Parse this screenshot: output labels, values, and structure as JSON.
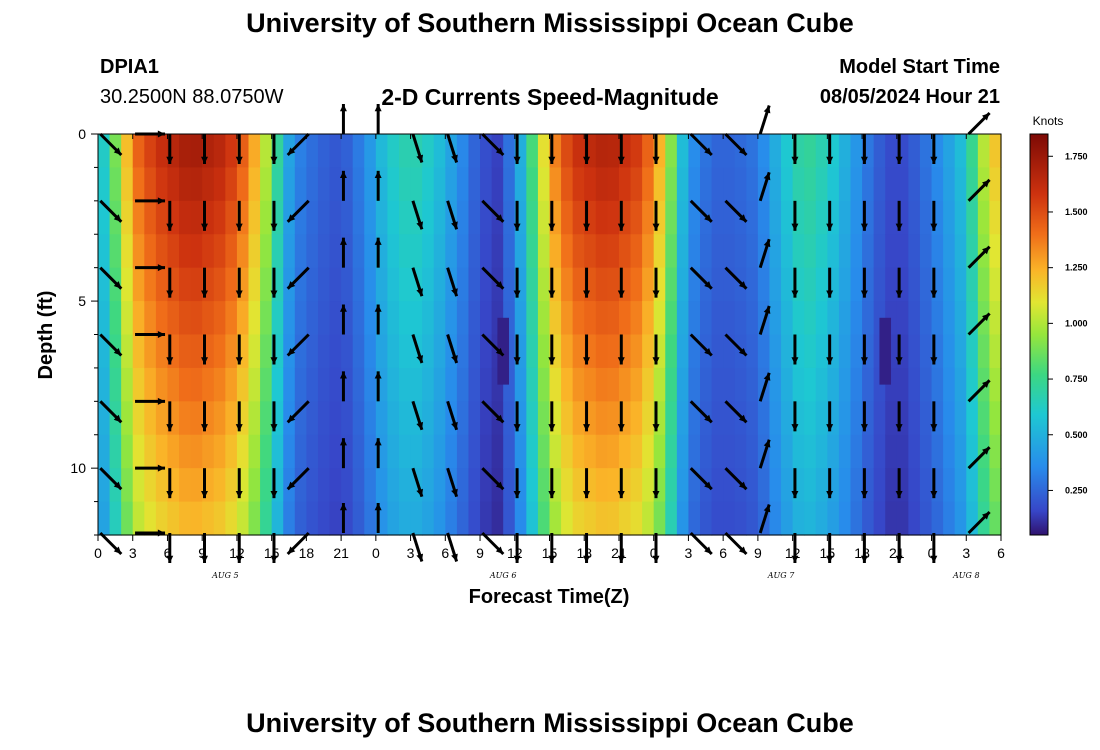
{
  "title": "University of Southern Mississippi Ocean Cube",
  "footer_title": "University of Southern Mississippi Ocean Cube",
  "station": {
    "id": "DPIA1",
    "coordinates": "30.2500N  88.0750W"
  },
  "subtitle": "2-D Currents Speed-Magnitude",
  "model_start": {
    "label": "Model Start Time",
    "value": "08/05/2024 Hour 21"
  },
  "chart_data": {
    "type": "heatmap",
    "title": "2-D Currents Speed-Magnitude",
    "xlabel": "Forecast Time(Z)",
    "ylabel": "Depth (ft)",
    "x_unit": "hours since 2024-08-05 00Z",
    "xlim": [
      0,
      78
    ],
    "ylim": [
      0,
      12
    ],
    "y_inverted": true,
    "x_tick_hours": [
      0,
      3,
      6,
      9,
      12,
      15,
      18,
      21,
      24,
      27,
      30,
      33,
      36,
      39,
      42,
      45,
      48,
      51,
      54,
      57,
      60,
      63,
      66,
      69,
      72,
      75,
      78
    ],
    "x_tick_labels": [
      "0",
      "3",
      "6",
      "9",
      "12",
      "15",
      "18",
      "21",
      "0",
      "3",
      "6",
      "9",
      "12",
      "15",
      "18",
      "21",
      "0",
      "3",
      "6",
      "9",
      "12",
      "15",
      "18",
      "21",
      "0",
      "3",
      "6"
    ],
    "y_ticks": [
      0,
      5,
      10
    ],
    "y_tick_labels": [
      "0",
      "5",
      "10"
    ],
    "date_labels": [
      {
        "hour": 11,
        "text": "AUG 5"
      },
      {
        "hour": 35,
        "text": "AUG 6"
      },
      {
        "hour": 59,
        "text": "AUG 7"
      },
      {
        "hour": 75,
        "text": "AUG 8"
      }
    ],
    "colorbar": {
      "unit": "Knots",
      "min": 0.05,
      "max": 1.85,
      "ticks": [
        0.25,
        0.5,
        0.75,
        1.0,
        1.25,
        1.5,
        1.75
      ],
      "tick_labels": [
        "0.250",
        "0.500",
        "0.750",
        "1.000",
        "1.250",
        "1.500",
        "1.750"
      ]
    },
    "speed_profile_knots": [
      {
        "hour": 0,
        "speed": 0.5
      },
      {
        "hour": 1,
        "speed": 0.75
      },
      {
        "hour": 2,
        "speed": 1.05
      },
      {
        "hour": 3,
        "speed": 1.4
      },
      {
        "hour": 5,
        "speed": 1.6
      },
      {
        "hour": 8,
        "speed": 1.75
      },
      {
        "hour": 11,
        "speed": 1.65
      },
      {
        "hour": 13,
        "speed": 1.4
      },
      {
        "hour": 15,
        "speed": 0.9
      },
      {
        "hour": 16,
        "speed": 0.55
      },
      {
        "hour": 17,
        "speed": 0.35
      },
      {
        "hour": 19,
        "speed": 0.25
      },
      {
        "hour": 21,
        "speed": 0.2
      },
      {
        "hour": 23,
        "speed": 0.35
      },
      {
        "hour": 25,
        "speed": 0.6
      },
      {
        "hour": 27,
        "speed": 0.7
      },
      {
        "hour": 29,
        "speed": 0.6
      },
      {
        "hour": 31,
        "speed": 0.4
      },
      {
        "hour": 33,
        "speed": 0.2
      },
      {
        "hour": 34.5,
        "speed": 0.15
      },
      {
        "hour": 36,
        "speed": 0.35
      },
      {
        "hour": 38,
        "speed": 0.95
      },
      {
        "hour": 39,
        "speed": 1.3
      },
      {
        "hour": 41,
        "speed": 1.6
      },
      {
        "hour": 44,
        "speed": 1.7
      },
      {
        "hour": 47,
        "speed": 1.55
      },
      {
        "hour": 49,
        "speed": 1.15
      },
      {
        "hour": 50,
        "speed": 0.7
      },
      {
        "hour": 51,
        "speed": 0.4
      },
      {
        "hour": 53,
        "speed": 0.25
      },
      {
        "hour": 55,
        "speed": 0.25
      },
      {
        "hour": 57,
        "speed": 0.3
      },
      {
        "hour": 59,
        "speed": 0.55
      },
      {
        "hour": 61,
        "speed": 0.75
      },
      {
        "hour": 63,
        "speed": 0.65
      },
      {
        "hour": 65,
        "speed": 0.45
      },
      {
        "hour": 67,
        "speed": 0.25
      },
      {
        "hour": 69,
        "speed": 0.15
      },
      {
        "hour": 71,
        "speed": 0.25
      },
      {
        "hour": 73,
        "speed": 0.4
      },
      {
        "hour": 75,
        "speed": 0.6
      },
      {
        "hour": 76,
        "speed": 0.9
      },
      {
        "hour": 77,
        "speed": 1.15
      },
      {
        "hour": 78,
        "speed": 1.25
      }
    ],
    "low_speed_patches": [
      {
        "hour_start": 34.5,
        "hour_end": 35.5,
        "depth_start": 5.5,
        "depth_end": 7.5,
        "speed": 0.08
      },
      {
        "hour_start": 67.5,
        "hour_end": 68.5,
        "depth_start": 5.5,
        "depth_end": 7.5,
        "speed": 0.08
      }
    ],
    "vector_depths": [
      0,
      2,
      4,
      6,
      8,
      10,
      12
    ],
    "vector_direction_profile": [
      {
        "hour": 0,
        "direction": "southeast"
      },
      {
        "hour": 2,
        "direction": "east"
      },
      {
        "hour": 5,
        "direction": "south"
      },
      {
        "hour": 13,
        "direction": "south"
      },
      {
        "hour": 18,
        "direction": "southwest"
      },
      {
        "hour": 22,
        "direction": "north"
      },
      {
        "hour": 26,
        "direction": "south-southeast"
      },
      {
        "hour": 33,
        "direction": "southeast"
      },
      {
        "hour": 36,
        "direction": "northeast"
      },
      {
        "hour": 37,
        "direction": "south"
      },
      {
        "hour": 50,
        "direction": "south"
      },
      {
        "hour": 52,
        "direction": "southeast"
      },
      {
        "hour": 57,
        "direction": "north-northeast"
      },
      {
        "hour": 61,
        "direction": "south"
      },
      {
        "hour": 66,
        "direction": "south"
      },
      {
        "hour": 68,
        "direction": "south"
      },
      {
        "hour": 72,
        "direction": "south"
      },
      {
        "hour": 75,
        "direction": "northeast"
      },
      {
        "hour": 78,
        "direction": "northeast"
      }
    ],
    "colors": {
      "background": "#ffffff",
      "axis": "#000000",
      "vector": "#000000"
    }
  }
}
